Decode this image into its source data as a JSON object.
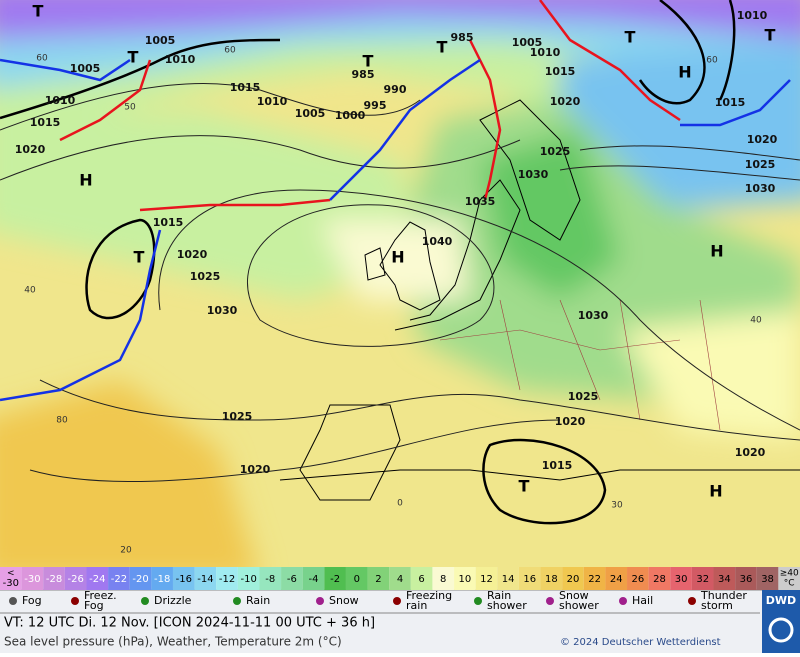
{
  "map": {
    "pressure_labels": [
      "1005",
      "1005",
      "1010",
      "1010",
      "1015",
      "1020",
      "1015",
      "1010",
      "1005",
      "1000",
      "995",
      "990",
      "985",
      "985",
      "1005",
      "1010",
      "1015",
      "1020",
      "1025",
      "1030",
      "1035",
      "1040",
      "1015",
      "1020",
      "1025",
      "1030",
      "1030",
      "1025",
      "1020",
      "1015",
      "1025",
      "1020",
      "1010",
      "1015",
      "1020",
      "1025",
      "1030",
      "1020"
    ],
    "pressure_centers": [
      "H",
      "T",
      "T",
      "T",
      "T",
      "T",
      "H",
      "T",
      "H",
      "T",
      "H",
      "H",
      "T"
    ],
    "graticule_labels": [
      "60",
      "60",
      "50",
      "40",
      "40",
      "60",
      "80",
      "20",
      "30",
      "0"
    ]
  },
  "scale": {
    "below": "<",
    "values": [
      -30,
      -28,
      -26,
      -24,
      -22,
      -20,
      -18,
      -16,
      -14,
      -12,
      -10,
      -8,
      -6,
      -4,
      -2,
      0,
      2,
      4,
      6,
      8,
      10,
      12,
      14,
      16,
      18,
      20,
      22,
      24,
      26,
      28,
      30,
      32,
      34,
      36,
      38
    ],
    "above": "≥40",
    "unit": "°C",
    "colors": [
      "#e6a0e6",
      "#dc96dc",
      "#c88cdc",
      "#b482e6",
      "#a078f0",
      "#7882f0",
      "#6496f0",
      "#64aaf0",
      "#78c3f0",
      "#8cd7f0",
      "#a0ebf0",
      "#a0f0dc",
      "#96e6be",
      "#8cdca5",
      "#78d28c",
      "#50be50",
      "#64c864",
      "#82d278",
      "#a0dc8c",
      "#c8f0a0",
      "#fafad2",
      "#fafab4",
      "#f5f096",
      "#f0e68c",
      "#f0dc78",
      "#f0d264",
      "#f0c850",
      "#f0b446",
      "#f0a046",
      "#f08c50",
      "#f07864",
      "#e6646e",
      "#d25a64",
      "#be5a5a",
      "#aa5a5a",
      "#a06464"
    ]
  },
  "legend": [
    "Fog",
    "Freez.\nFog",
    "Drizzle",
    "Rain",
    "Snow",
    "Freezing\nrain",
    "Rain\nshower",
    "Snow\nshower",
    "Hail",
    "Thunder\nstorm"
  ],
  "footer": {
    "valid_time": "VT: 12 UTC Di.  12 Nov. [ICON 2024-11-11  00 UTC + 36 h]",
    "description": "Sea level pressure (hPa), Weather, Temperature 2m (°C)",
    "copyright": "© 2024 Deutscher Wetterdienst",
    "logo": "DWD"
  }
}
